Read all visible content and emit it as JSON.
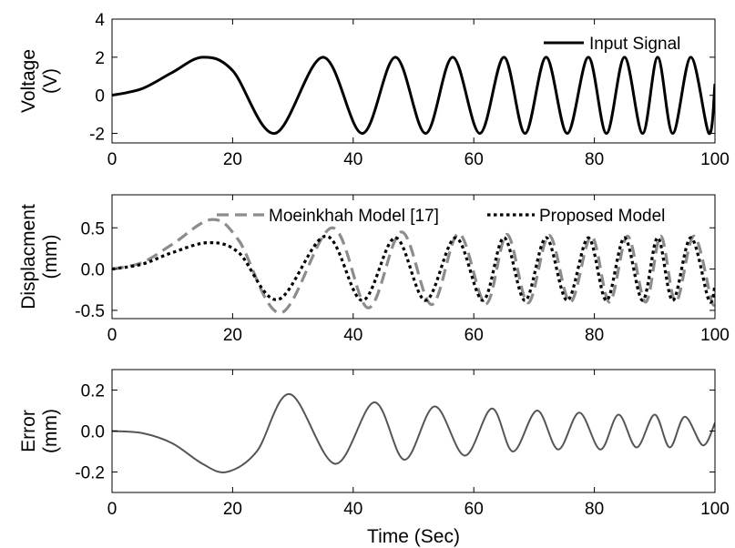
{
  "chart_data": [
    {
      "type": "line",
      "panel": "top",
      "ylabel": [
        "Voltage",
        "(V)"
      ],
      "xlim": [
        0,
        100
      ],
      "ylim": [
        -2.5,
        4
      ],
      "xticks": [
        0,
        20,
        40,
        60,
        80,
        100
      ],
      "yticks": [
        4,
        2,
        0,
        -2
      ],
      "xtick_labels": [
        "0",
        "20",
        "40",
        "60",
        "80",
        "100"
      ],
      "ytick_labels": [
        "4",
        "2",
        "0",
        "-2"
      ],
      "legend": {
        "position": "top-right",
        "entries": [
          "Input Signal"
        ]
      },
      "series": [
        {
          "name": "Input Signal",
          "color": "#000000",
          "style": "solid",
          "x": [
            0,
            5,
            10,
            15,
            20,
            27,
            35,
            41.5,
            47,
            52,
            56.5,
            61,
            65,
            68.5,
            72,
            75.5,
            79,
            82,
            85,
            88,
            90.5,
            93,
            96,
            99,
            100
          ],
          "y": [
            0,
            0.35,
            1.2,
            2,
            1.3,
            -2,
            2,
            -2,
            2,
            -2,
            2,
            -2,
            2,
            -2,
            2,
            -2,
            2,
            -2,
            2,
            -2,
            2,
            -2,
            2,
            -2,
            0.6
          ]
        }
      ]
    },
    {
      "type": "line",
      "panel": "middle",
      "ylabel": [
        "Displacment",
        "(mm)"
      ],
      "xlim": [
        0,
        100
      ],
      "ylim": [
        -0.6,
        0.9
      ],
      "xticks": [
        0,
        20,
        40,
        60,
        80,
        100
      ],
      "yticks": [
        0.5,
        0,
        -0.5
      ],
      "xtick_labels": [
        "0",
        "20",
        "40",
        "60",
        "80",
        "100"
      ],
      "ytick_labels": [
        "0.5",
        "0.0",
        "-0.5"
      ],
      "legend": {
        "position": "top",
        "entries": [
          "Moeinkhah Model [17]",
          "Proposed Model"
        ]
      },
      "series": [
        {
          "name": "Moeinkhah Model [17]",
          "color": "#8c8c8c",
          "style": "dashed",
          "x": [
            0,
            5,
            10,
            16.5,
            21,
            28,
            36.5,
            42.5,
            48,
            53,
            57.5,
            62,
            65.5,
            69,
            72.5,
            76,
            79.5,
            82.5,
            85.5,
            88.5,
            91,
            93.5,
            96.5,
            99.5,
            100
          ],
          "y": [
            0,
            0.08,
            0.3,
            0.6,
            0.35,
            -0.53,
            0.5,
            -0.47,
            0.45,
            -0.43,
            0.43,
            -0.42,
            0.42,
            -0.41,
            0.41,
            -0.4,
            0.4,
            -0.4,
            0.4,
            -0.4,
            0.4,
            -0.4,
            0.4,
            -0.4,
            -0.3
          ]
        },
        {
          "name": "Proposed Model",
          "color": "#000000",
          "style": "dotted",
          "x": [
            0,
            5,
            10,
            16,
            21,
            27.5,
            35.5,
            41.5,
            47,
            52,
            57,
            61.5,
            65,
            68.5,
            72,
            75.5,
            79,
            82,
            85,
            88,
            90.5,
            93,
            96,
            99,
            100
          ],
          "y": [
            0,
            0.06,
            0.2,
            0.32,
            0.2,
            -0.37,
            0.4,
            -0.38,
            0.38,
            -0.38,
            0.38,
            -0.38,
            0.38,
            -0.38,
            0.38,
            -0.38,
            0.38,
            -0.38,
            0.38,
            -0.38,
            0.38,
            -0.38,
            0.38,
            -0.38,
            -0.2
          ]
        }
      ]
    },
    {
      "type": "line",
      "panel": "bottom",
      "ylabel": [
        "Error",
        "(mm)"
      ],
      "xlabel": "Time (Sec)",
      "xlim": [
        0,
        100
      ],
      "ylim": [
        -0.3,
        0.3
      ],
      "xticks": [
        0,
        20,
        40,
        60,
        80,
        100
      ],
      "yticks": [
        0.2,
        0,
        -0.2
      ],
      "xtick_labels": [
        "0",
        "20",
        "40",
        "60",
        "80",
        "100"
      ],
      "ytick_labels": [
        "0.2",
        "0.0",
        "-0.2"
      ],
      "series": [
        {
          "color": "#555555",
          "style": "solid",
          "x": [
            0,
            5,
            10,
            15,
            19,
            24,
            29.5,
            37,
            43.5,
            48.5,
            53.5,
            58.5,
            63,
            66.5,
            70.5,
            74,
            77.5,
            81,
            84,
            87,
            90,
            92.5,
            95,
            98,
            100
          ],
          "y": [
            0,
            -0.01,
            -0.06,
            -0.16,
            -0.2,
            -0.1,
            0.18,
            -0.16,
            0.14,
            -0.14,
            0.12,
            -0.12,
            0.11,
            -0.1,
            0.1,
            -0.09,
            0.09,
            -0.09,
            0.08,
            -0.08,
            0.08,
            -0.08,
            0.07,
            -0.07,
            0.04
          ]
        }
      ]
    }
  ]
}
